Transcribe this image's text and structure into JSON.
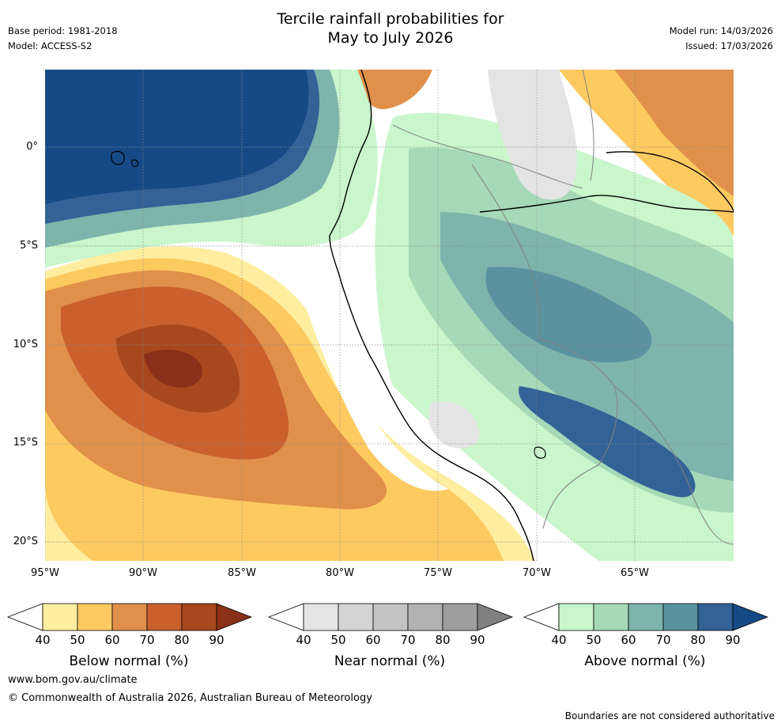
{
  "title": {
    "line1": "Tercile rainfall probabilities for",
    "line2": "May to July 2026"
  },
  "meta_left": {
    "base_period": "Base period: 1981-2018",
    "model": "Model: ACCESS-S2"
  },
  "meta_right": {
    "model_run": "Model run: 14/03/2026",
    "issued": "Issued: 17/03/2026"
  },
  "axes": {
    "lat_labels": [
      "0°",
      "5°S",
      "10°S",
      "15°S",
      "20°S"
    ],
    "lon_labels": [
      "95°W",
      "90°W",
      "85°W",
      "80°W",
      "75°W",
      "70°W",
      "65°W"
    ]
  },
  "colorbars": {
    "ticks": [
      "40",
      "50",
      "60",
      "70",
      "80",
      "90"
    ],
    "below": {
      "label": "Below normal (%)",
      "colors": [
        "#ffeea0",
        "#fdca60",
        "#e0904a",
        "#c9602e",
        "#a8481f",
        "#8a3018"
      ]
    },
    "near": {
      "label": "Near normal (%)",
      "colors": [
        "#e4e4e4",
        "#d4d4d4",
        "#c4c4c4",
        "#b2b2b2",
        "#9e9e9e",
        "#808080"
      ]
    },
    "above": {
      "label": "Above normal (%)",
      "colors": [
        "#c9f6cb",
        "#a6d9b8",
        "#7eb4ac",
        "#5a92a0",
        "#336296",
        "#164a86"
      ]
    }
  },
  "footer": {
    "url": "www.bom.gov.au/climate",
    "copyright": "© Commonwealth of Australia 2026, Australian Bureau of Meteorology",
    "disclaimer": "Boundaries are not considered authoritative"
  },
  "colors": {
    "ocean_white": "#ffffff",
    "grid": "#8a8a8a",
    "coastline": "#000000",
    "border": "#808080"
  }
}
